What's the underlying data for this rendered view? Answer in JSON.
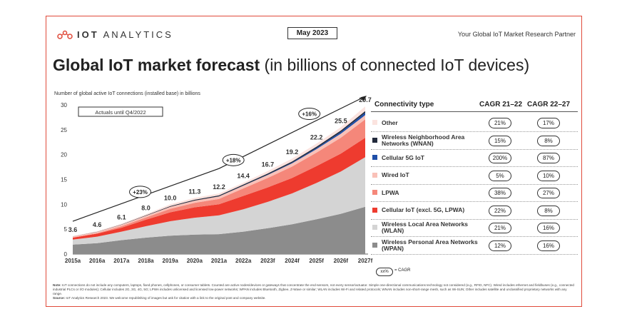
{
  "header": {
    "logo_text_bold": "IOT",
    "logo_text": "ANALYTICS",
    "date": "May 2023",
    "partner": "Your Global IoT Market Research Partner"
  },
  "title": {
    "bold": "Global IoT market forecast",
    "rest": " (in billions of connected IoT devices)"
  },
  "chart_caption": "Number of global active IoT connections (installed base) in billions",
  "actuals_label": "Actuals until Q4/2022",
  "growth_labels": [
    "+23%",
    "+18%",
    "+16%"
  ],
  "table": {
    "header": "Connectivity type",
    "cagr1": "CAGR 21–22",
    "cagr2": "CAGR 22–27",
    "rows": [
      {
        "label": "Other",
        "c1": "21%",
        "c2": "17%"
      },
      {
        "label": "Wireless Neighborhood Area Networks (WNAN)",
        "c1": "15%",
        "c2": "8%"
      },
      {
        "label": "Cellular 5G IoT",
        "c1": "200%",
        "c2": "87%"
      },
      {
        "label": "Wired IoT",
        "c1": "5%",
        "c2": "10%"
      },
      {
        "label": "LPWA",
        "c1": "38%",
        "c2": "27%"
      },
      {
        "label": "Cellular IoT (excl. 5G, LPWA)",
        "c1": "22%",
        "c2": "8%"
      },
      {
        "label": "Wireless Local Area Networks (WLAN)",
        "c1": "21%",
        "c2": "16%"
      },
      {
        "label": "Wireless Personal Area Networks (WPAN)",
        "c1": "12%",
        "c2": "16%"
      }
    ]
  },
  "legend": {
    "pill": "xx%",
    "text": "= CAGR"
  },
  "footnote": {
    "note_label": "Note:",
    "note": " IoT connections do not include any computers, laptops, fixed phones, cellphones, or consumer tablets. Counted are active nodes/devices or gateways that concentrate the end-sensors, not every sensor/actuator. Simple one-directional communications technology not considered (e.g., RFID, NFC). Wired includes ethernet and fieldbuses (e.g., connected industrial PLCs or I/O modules); Cellular includes 2G, 3G, 4G, 5G; LPWA includes unlicensed and licensed low-power networks; WPAN includes Bluetooth, Zigbee, Z-Wave or similar; WLAN includes Wi-Fi and related protocols; WNAN includes non-short-range mesh, such as Wi-SUN; Other includes satellite and unclassified proprietary networks with any range.",
    "source_label": "Source:",
    "source": " IoT Analytics Research 2023. We welcome republishing of images but ask for citation with a link to the original post and company website."
  },
  "chart_data": {
    "type": "area",
    "title": "Global IoT market forecast",
    "ylabel": "Number of global active IoT connections (installed base) in billions",
    "ylim": [
      0,
      30
    ],
    "yticks": [
      0,
      5,
      10,
      15,
      20,
      25,
      30
    ],
    "categories": [
      "2015a",
      "2016a",
      "2017a",
      "2018a",
      "2019a",
      "2020a",
      "2021a",
      "2022a",
      "2023f",
      "2024f",
      "2025f",
      "2026f",
      "2027f"
    ],
    "totals": [
      3.6,
      4.6,
      6.1,
      8.0,
      10.0,
      11.3,
      12.2,
      14.4,
      16.7,
      19.2,
      22.2,
      25.5,
      29.7
    ],
    "series": [
      {
        "name": "Wireless Personal Area Networks (WPAN)",
        "color": "#8c8c8c",
        "values": [
          1.9,
          2.2,
          2.8,
          3.3,
          3.7,
          3.9,
          4.0,
          4.5,
          5.2,
          6.0,
          7.0,
          8.1,
          9.5
        ]
      },
      {
        "name": "Wireless Local Area Networks (WLAN)",
        "color": "#d4d4d4",
        "values": [
          1.0,
          1.3,
          1.7,
          2.3,
          2.9,
          3.4,
          3.8,
          4.5,
          5.3,
          6.2,
          7.3,
          8.5,
          10.0
        ]
      },
      {
        "name": "Cellular IoT (excl. 5G, LPWA)",
        "color": "#ee3b2f",
        "values": [
          0.4,
          0.6,
          0.8,
          1.3,
          1.8,
          2.1,
          2.2,
          2.7,
          2.9,
          3.1,
          3.4,
          3.6,
          3.9
        ]
      },
      {
        "name": "LPWA",
        "color": "#f5877a",
        "values": [
          0.05,
          0.1,
          0.3,
          0.45,
          0.7,
          0.9,
          1.1,
          1.5,
          1.9,
          2.3,
          2.7,
          3.2,
          3.7
        ]
      },
      {
        "name": "Wired IoT",
        "color": "#f9c1b8",
        "values": [
          0.2,
          0.25,
          0.3,
          0.35,
          0.4,
          0.45,
          0.5,
          0.55,
          0.6,
          0.65,
          0.7,
          0.8,
          0.85
        ]
      },
      {
        "name": "Cellular 5G IoT",
        "color": "#1f4fa8",
        "values": [
          0.0,
          0.0,
          0.0,
          0.0,
          0.0,
          0.0,
          0.01,
          0.03,
          0.06,
          0.12,
          0.22,
          0.35,
          0.5
        ]
      },
      {
        "name": "Wireless Neighborhood Area Networks (WNAN)",
        "color": "#222a3c",
        "values": [
          0.03,
          0.04,
          0.05,
          0.1,
          0.15,
          0.18,
          0.2,
          0.22,
          0.24,
          0.26,
          0.28,
          0.3,
          0.32
        ]
      },
      {
        "name": "Other",
        "color": "#fbe3df",
        "values": [
          0.02,
          0.1,
          0.15,
          0.2,
          0.35,
          0.37,
          0.37,
          0.35,
          0.5,
          0.57,
          0.6,
          0.65,
          0.93
        ]
      }
    ],
    "legend": "right (table)",
    "grid": false
  }
}
